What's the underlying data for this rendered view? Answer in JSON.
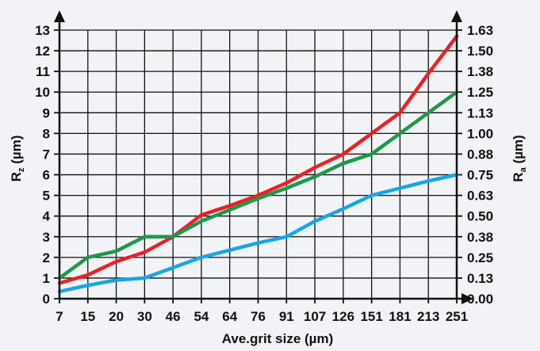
{
  "chart_data": {
    "type": "line",
    "categories": [
      "7",
      "15",
      "20",
      "30",
      "46",
      "54",
      "64",
      "76",
      "91",
      "107",
      "126",
      "151",
      "181",
      "213",
      "251"
    ],
    "xlabel": "Ave.grit size (µm)",
    "ylabel_left": {
      "main": "R",
      "sub": "z",
      "unit": " (µm)"
    },
    "ylabel_right": {
      "main": "R",
      "sub": "a",
      "unit": " (µm)"
    },
    "y_left": {
      "ylim": [
        0,
        13
      ],
      "ticks": [
        "0",
        "1",
        "2",
        "3",
        "4",
        "5",
        "6",
        "7",
        "8",
        "9",
        "10",
        "11",
        "12",
        "13"
      ]
    },
    "y_right": {
      "ylim": [
        0,
        1.63
      ],
      "ticks": [
        "0.00",
        "0.13",
        "0.25",
        "0.38",
        "0.50",
        "0.63",
        "0.75",
        "0.88",
        "1.00",
        "1.13",
        "1.25",
        "1.38",
        "1.50",
        "1.63"
      ]
    },
    "grid": true,
    "series": [
      {
        "color": "#ee1f24",
        "values": [
          0.75,
          1.15,
          1.8,
          2.25,
          3.0,
          4.05,
          4.5,
          5.0,
          5.6,
          6.35,
          7.0,
          8.0,
          9.0,
          10.9,
          12.7
        ]
      },
      {
        "color": "#1a9a48",
        "values": [
          1.0,
          2.0,
          2.3,
          3.0,
          3.0,
          3.75,
          4.3,
          4.85,
          5.35,
          5.9,
          6.55,
          7.0,
          8.0,
          9.0,
          10.0
        ]
      },
      {
        "color": "#16a6e8",
        "values": [
          0.35,
          0.65,
          0.9,
          1.0,
          1.5,
          2.0,
          2.35,
          2.7,
          3.0,
          3.75,
          4.35,
          5.0,
          5.35,
          5.7,
          6.0
        ]
      }
    ]
  }
}
